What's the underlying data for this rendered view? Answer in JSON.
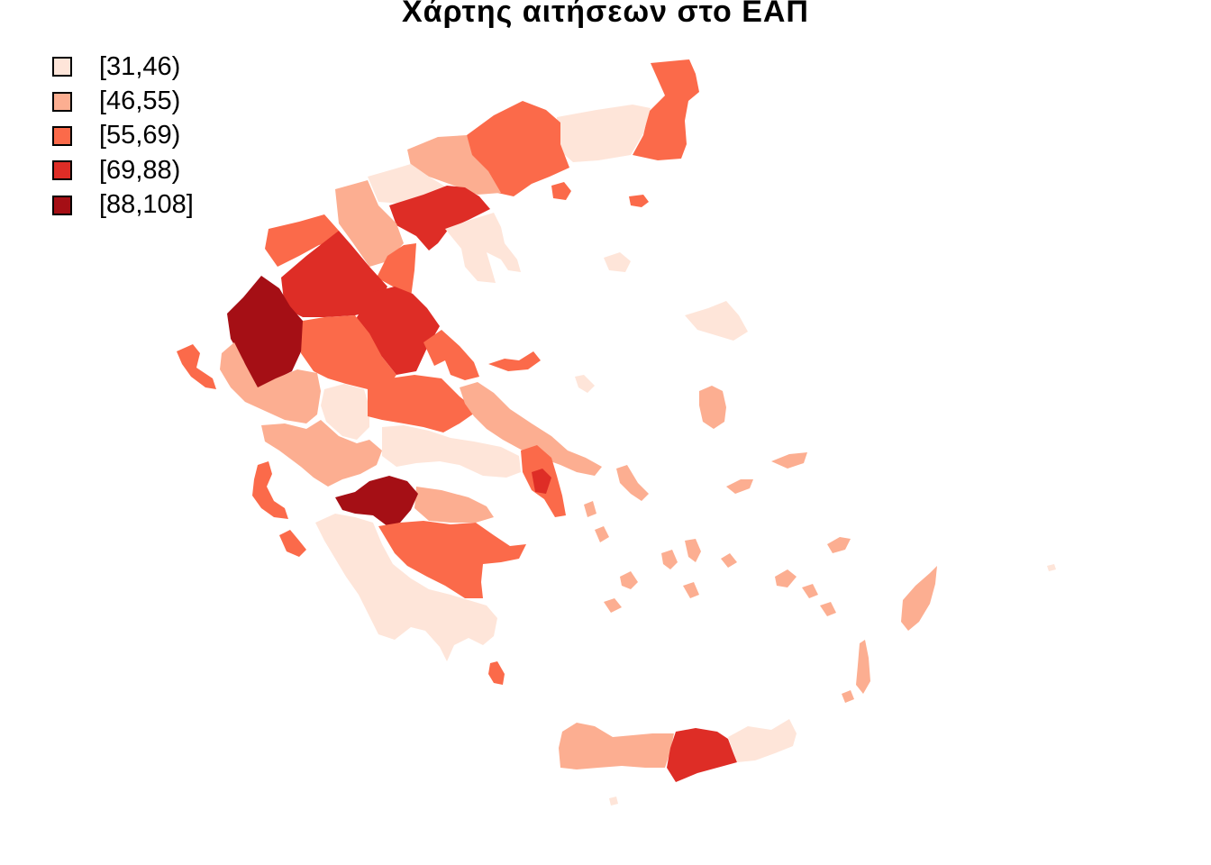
{
  "title": "Χάρτης αιτήσεων στο ΕΑΠ",
  "legend": {
    "items": [
      {
        "label": "[31,46)",
        "color": "#fee5d9"
      },
      {
        "label": "[46,55)",
        "color": "#fcae91"
      },
      {
        "label": "[55,69)",
        "color": "#fb6a4a"
      },
      {
        "label": "[69,88)",
        "color": "#de2d26"
      },
      {
        "label": "[88,108]",
        "color": "#a50f15"
      }
    ]
  },
  "map": {
    "colors": {
      "c1": "#fee5d9",
      "c2": "#fcae91",
      "c3": "#fb6a4a",
      "c4": "#de2d26",
      "c5": "#a50f15"
    }
  }
}
